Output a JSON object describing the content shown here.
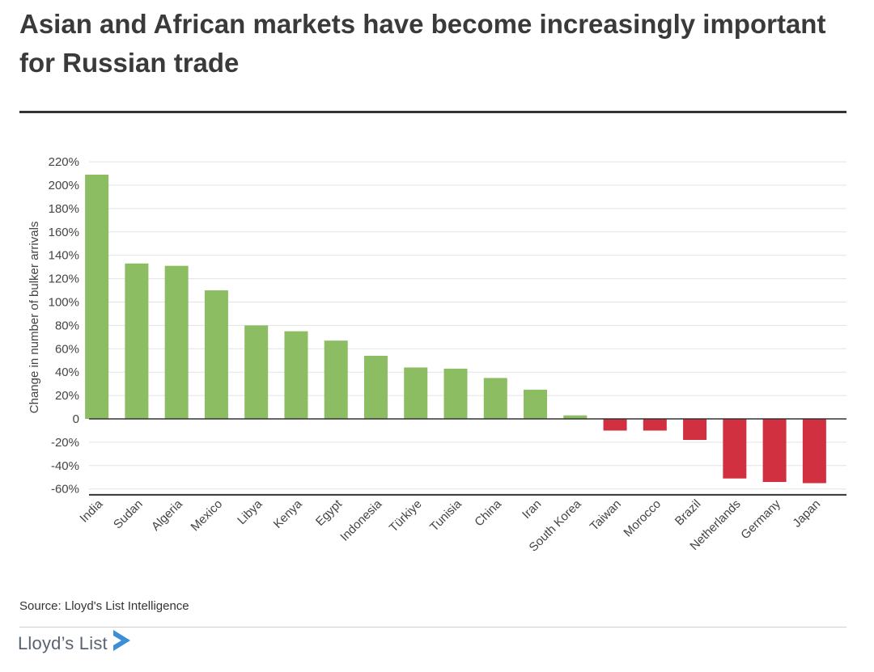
{
  "header": {
    "title": "Asian and African markets have become increasingly important for Russian trade"
  },
  "footer": {
    "source": "Source: Lloyd's List Intelligence",
    "logo_text": "Lloyd’s List",
    "logo_icon": "play-chevron-icon"
  },
  "colors": {
    "positive": "#8cbd62",
    "negative": "#d0303f",
    "title": "#3a3a3a",
    "logo": "#5a6470",
    "logo_mark": "#3a8fd6"
  },
  "chart_data": {
    "type": "bar",
    "ylabel": "Change in number of bulker arrivals",
    "xlabel": "",
    "ylim": [
      -65,
      225
    ],
    "yticks": [
      220,
      200,
      180,
      160,
      140,
      120,
      100,
      80,
      60,
      40,
      20,
      0,
      -20,
      -40,
      -60
    ],
    "ytick_labels": [
      "220%",
      "200%",
      "180%",
      "160%",
      "140%",
      "120%",
      "100%",
      "80%",
      "60%",
      "40%",
      "20%",
      "0",
      "-20%",
      "-40%",
      "-60%"
    ],
    "grid": true,
    "categories": [
      "India",
      "Sudan",
      "Algeria",
      "Mexico",
      "Libya",
      "Kenya",
      "Egypt",
      "Indonesia",
      "Türkiye",
      "Tunisia",
      "China",
      "Iran",
      "South Korea",
      "Taiwan",
      "Morocco",
      "Brazil",
      "Netherlands",
      "Germany",
      "Japan"
    ],
    "values": [
      209,
      133,
      131,
      110,
      80,
      75,
      67,
      54,
      44,
      43,
      35,
      25,
      3,
      -10,
      -10,
      -18,
      -51,
      -54,
      -55
    ]
  }
}
